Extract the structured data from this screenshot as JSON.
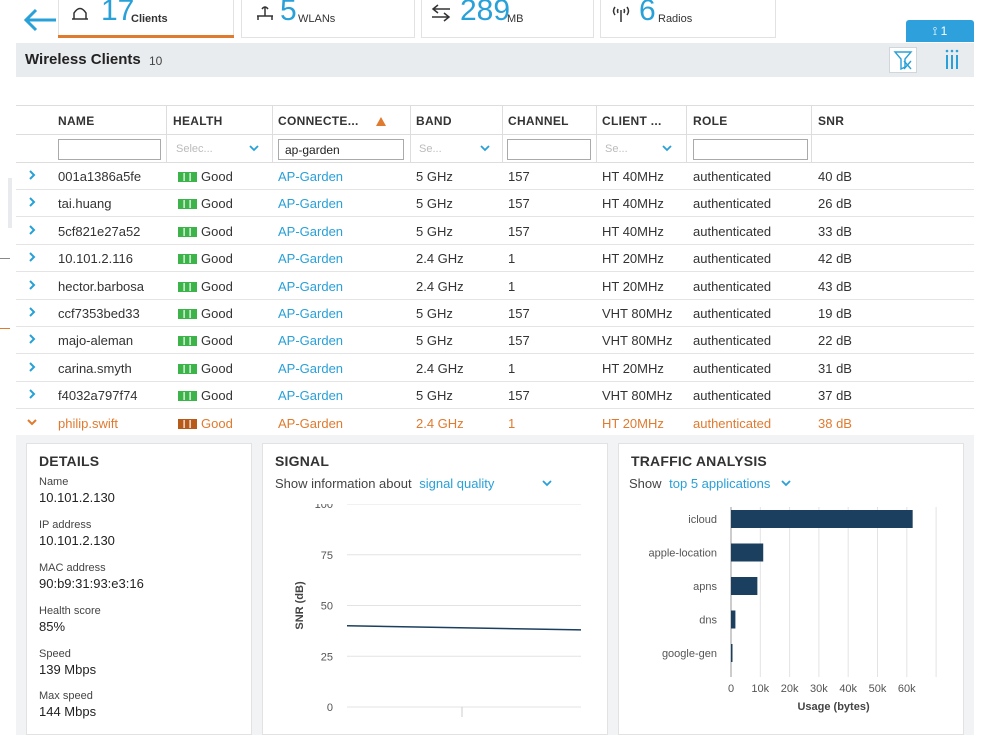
{
  "summary": {
    "clients": {
      "value": "17",
      "label": "Clients"
    },
    "wlans": {
      "value": "5",
      "label": "WLANs"
    },
    "traffic": {
      "value": "289",
      "label": "MB"
    },
    "radios": {
      "value": "6",
      "label": "Radios"
    },
    "badge": "1"
  },
  "header": {
    "title": "Wireless Clients",
    "count": "10"
  },
  "columns": [
    "NAME",
    "HEALTH",
    "CONNECTE...",
    "BAND",
    "CHANNEL",
    "CLIENT ...",
    "ROLE",
    "SNR"
  ],
  "filters": {
    "health_placeholder": "Selec...",
    "connected_value": "ap-garden",
    "band_placeholder": "Se...",
    "client_placeholder": "Se..."
  },
  "rows": [
    {
      "name": "001a1386a5fe",
      "health": "Good",
      "ap": "AP-Garden",
      "band": "5 GHz",
      "channel": "157",
      "client": "HT 40MHz",
      "role": "authenticated",
      "snr": "40 dB"
    },
    {
      "name": "tai.huang",
      "health": "Good",
      "ap": "AP-Garden",
      "band": "5 GHz",
      "channel": "157",
      "client": "HT 40MHz",
      "role": "authenticated",
      "snr": "26 dB"
    },
    {
      "name": "5cf821e27a52",
      "health": "Good",
      "ap": "AP-Garden",
      "band": "5 GHz",
      "channel": "157",
      "client": "HT 40MHz",
      "role": "authenticated",
      "snr": "33 dB"
    },
    {
      "name": "10.101.2.116",
      "health": "Good",
      "ap": "AP-Garden",
      "band": "2.4 GHz",
      "channel": "1",
      "client": "HT 20MHz",
      "role": "authenticated",
      "snr": "42 dB"
    },
    {
      "name": "hector.barbosa",
      "health": "Good",
      "ap": "AP-Garden",
      "band": "2.4 GHz",
      "channel": "1",
      "client": "HT 20MHz",
      "role": "authenticated",
      "snr": "43 dB"
    },
    {
      "name": "ccf7353bed33",
      "health": "Good",
      "ap": "AP-Garden",
      "band": "5 GHz",
      "channel": "157",
      "client": "VHT 80MHz",
      "role": "authenticated",
      "snr": "19 dB"
    },
    {
      "name": "majo-aleman",
      "health": "Good",
      "ap": "AP-Garden",
      "band": "5 GHz",
      "channel": "157",
      "client": "VHT 80MHz",
      "role": "authenticated",
      "snr": "22 dB"
    },
    {
      "name": "carina.smyth",
      "health": "Good",
      "ap": "AP-Garden",
      "band": "2.4 GHz",
      "channel": "1",
      "client": "HT 20MHz",
      "role": "authenticated",
      "snr": "31 dB"
    },
    {
      "name": "f4032a797f74",
      "health": "Good",
      "ap": "AP-Garden",
      "band": "5 GHz",
      "channel": "157",
      "client": "VHT 80MHz",
      "role": "authenticated",
      "snr": "37 dB"
    },
    {
      "name": "philip.swift",
      "health": "Good",
      "ap": "AP-Garden",
      "band": "2.4 GHz",
      "channel": "1",
      "client": "HT 20MHz",
      "role": "authenticated",
      "snr": "38 dB"
    }
  ],
  "colors": {
    "accent": "#28a0d8",
    "selected": "#e07a2e",
    "good": "#3cb44a",
    "bar": "#1b3f5e"
  },
  "details": {
    "title": "DETAILS",
    "fields": [
      {
        "label": "Name",
        "value": "10.101.2.130"
      },
      {
        "label": "IP address",
        "value": "10.101.2.130"
      },
      {
        "label": "MAC address",
        "value": "90:b9:31:93:e3:16"
      },
      {
        "label": "Health score",
        "value": "85%"
      },
      {
        "label": "Speed",
        "value": "139 Mbps"
      },
      {
        "label": "Max speed",
        "value": "144 Mbps"
      }
    ]
  },
  "signal": {
    "title": "SIGNAL",
    "show_label": "Show information about",
    "selection": "signal quality",
    "chart_data": {
      "type": "line",
      "ylabel": "SNR (dB)",
      "ylim": [
        0,
        100
      ],
      "yticks": [
        "100",
        "75",
        "50",
        "25",
        "0"
      ],
      "series": [
        {
          "values": [
            40,
            38
          ]
        }
      ]
    }
  },
  "traffic": {
    "title": "TRAFFIC ANALYSIS",
    "show_label": "Show",
    "selection": "top 5 applications",
    "chart_data": {
      "type": "bar",
      "categories": [
        "icloud",
        "apple-location",
        "apns",
        "dns",
        "google-gen"
      ],
      "values": [
        62000,
        11000,
        9000,
        1500,
        500
      ],
      "xlabel": "Usage (bytes)",
      "xlim": [
        0,
        70000
      ],
      "xticks": [
        "0",
        "10k",
        "20k",
        "30k",
        "40k",
        "50k",
        "60k"
      ]
    }
  }
}
